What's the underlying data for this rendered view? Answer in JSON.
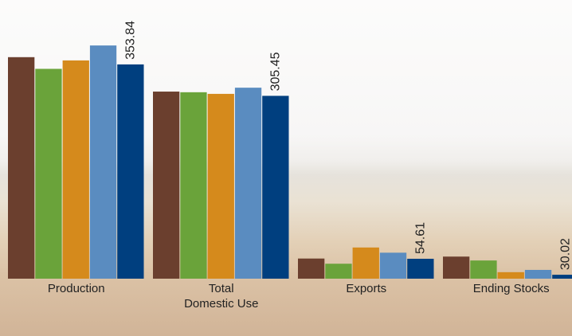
{
  "chart_data": {
    "type": "bar",
    "categories": [
      "Production",
      "Total\nDomestic Use",
      "Exports",
      "Ending Stocks"
    ],
    "ylim": [
      24,
      453
    ],
    "data_labels": "last-series",
    "series": [
      {
        "color": "#6b3f2e",
        "values": [
          365,
          312,
          55,
          58
        ]
      },
      {
        "color": "#6aa33a",
        "values": [
          347,
          311,
          47,
          52
        ]
      },
      {
        "color": "#d58a1c",
        "values": [
          360,
          308.5,
          72,
          34
        ]
      },
      {
        "color": "#5a8cc0",
        "values": [
          383,
          318,
          64,
          37.5
        ]
      },
      {
        "color": "#003f7f",
        "values": [
          353.84,
          305.45,
          54.61,
          30.02
        ]
      }
    ]
  }
}
